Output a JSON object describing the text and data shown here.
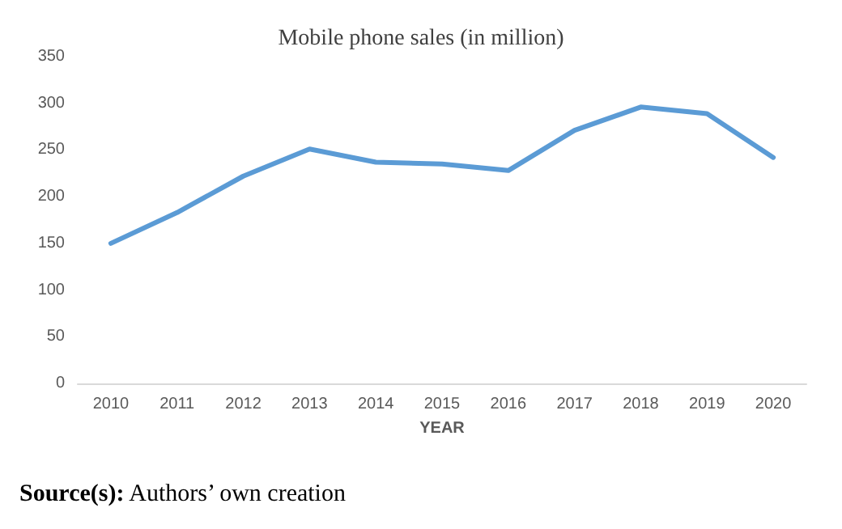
{
  "chart_data": {
    "type": "line",
    "title": "Mobile phone sales (in million)",
    "xlabel": "YEAR",
    "categories": [
      "2010",
      "2011",
      "2012",
      "2013",
      "2014",
      "2015",
      "2016",
      "2017",
      "2018",
      "2019",
      "2020"
    ],
    "series": [
      {
        "color": "#5b9bd5",
        "values": [
          150,
          183,
          222,
          251,
          237,
          235,
          228,
          271,
          296,
          289,
          242
        ]
      }
    ],
    "ylim": [
      0,
      350
    ],
    "yticks": [
      0,
      50,
      100,
      150,
      200,
      250,
      300,
      350
    ],
    "grid": false,
    "marker": "none",
    "line_style": "solid",
    "annotations": [
      "Source(s): Authors’ own creation"
    ]
  }
}
